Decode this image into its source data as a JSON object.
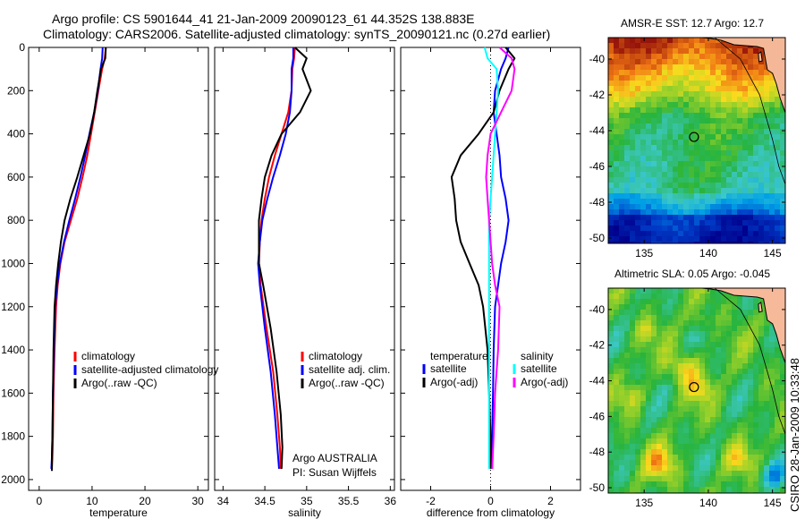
{
  "header": {
    "line1": "Argo profile: CS 5901644_41 21-Jan-2009 20090123_61 44.352S 138.883E",
    "line2": "Climatology: CARS2006. Satellite-adjusted climatology: synTS_20090121.nc (0.27d earlier)"
  },
  "side_label": "CSIRO 28-Jan-2009 10:33:48",
  "credit": {
    "line1": "Argo AUSTRALIA",
    "line2": "PI: Susan Wijffels"
  },
  "colors": {
    "climatology": "#ff0000",
    "satellite": "#0000ff",
    "argo": "#000000",
    "salinity_diff": "#ff00ff",
    "salinity_sat": "#00ffff"
  },
  "chart_data": [
    {
      "type": "line",
      "xlabel": "temperature",
      "ylabel": "",
      "xlim": [
        -2,
        32
      ],
      "ylim": [
        2050,
        0
      ],
      "xticks": [
        0,
        10,
        20,
        30
      ],
      "yticks": [
        0,
        200,
        400,
        600,
        800,
        1000,
        1200,
        1400,
        1600,
        1800,
        2000
      ],
      "legend": [
        "climatology",
        "satellite-adjusted climatology",
        "Argo(..raw -QC)"
      ],
      "series": [
        {
          "name": "climatology",
          "color": "#ff0000",
          "x": [
            12.6,
            12.4,
            11.9,
            11.2,
            10.5,
            9.8,
            9.1,
            8.2,
            7.2,
            6.0,
            4.8,
            4.0,
            3.5,
            3.2,
            2.9,
            2.7,
            2.6,
            2.5,
            2.4
          ],
          "y": [
            0,
            50,
            100,
            200,
            300,
            400,
            500,
            600,
            700,
            800,
            900,
            1000,
            1100,
            1200,
            1400,
            1600,
            1800,
            1900,
            1950
          ]
        },
        {
          "name": "satellite-adjusted climatology",
          "color": "#0000ff",
          "x": [
            12.0,
            11.9,
            11.6,
            11.1,
            10.4,
            9.5,
            8.7,
            7.8,
            6.8,
            5.7,
            4.7,
            3.9,
            3.4,
            3.0,
            2.8,
            2.6,
            2.5,
            2.4,
            2.3
          ],
          "y": [
            0,
            50,
            100,
            200,
            300,
            400,
            500,
            600,
            700,
            800,
            900,
            1000,
            1100,
            1200,
            1400,
            1600,
            1800,
            1900,
            1950
          ]
        },
        {
          "name": "Argo(..raw -QC)",
          "color": "#000000",
          "x": [
            12.6,
            12.5,
            11.7,
            11.0,
            10.4,
            9.6,
            8.4,
            7.2,
            5.9,
            4.8,
            4.1,
            3.6,
            3.2,
            2.9,
            2.7,
            2.6,
            2.5,
            2.4,
            2.4
          ],
          "y": [
            0,
            50,
            100,
            200,
            300,
            400,
            500,
            600,
            700,
            800,
            900,
            1000,
            1100,
            1200,
            1400,
            1600,
            1800,
            1900,
            1960
          ]
        }
      ]
    },
    {
      "type": "line",
      "xlabel": "salinity",
      "ylabel": "",
      "xlim": [
        33.9,
        36.05
      ],
      "ylim": [
        2050,
        0
      ],
      "xticks": [
        34,
        34.5,
        35,
        35.5,
        36
      ],
      "xticklabels": [
        "34",
        "34.5",
        "35",
        "35.5",
        "36"
      ],
      "legend": [
        "climatology",
        "satellite adj. clim.",
        "Argo(..raw -QC)"
      ],
      "series": [
        {
          "name": "climatology",
          "color": "#ff0000",
          "x": [
            34.86,
            34.85,
            34.83,
            34.82,
            34.78,
            34.7,
            34.62,
            34.55,
            34.5,
            34.46,
            34.44,
            34.43,
            34.45,
            34.52,
            34.6,
            34.65,
            34.68,
            34.69
          ],
          "y": [
            0,
            50,
            100,
            200,
            300,
            400,
            500,
            600,
            700,
            800,
            900,
            1000,
            1100,
            1300,
            1500,
            1700,
            1850,
            1950
          ]
        },
        {
          "name": "satellite adj. clim.",
          "color": "#0000ff",
          "x": [
            34.84,
            34.84,
            34.82,
            34.82,
            34.8,
            34.75,
            34.68,
            34.6,
            34.53,
            34.47,
            34.44,
            34.42,
            34.44,
            34.5,
            34.57,
            34.62,
            34.65,
            34.67
          ],
          "y": [
            0,
            50,
            100,
            200,
            300,
            400,
            500,
            600,
            700,
            800,
            900,
            1000,
            1100,
            1300,
            1500,
            1700,
            1850,
            1950
          ]
        },
        {
          "name": "Argo(..raw -QC)",
          "color": "#000000",
          "x": [
            34.86,
            35.0,
            34.95,
            35.05,
            34.92,
            34.7,
            34.58,
            34.5,
            34.46,
            34.43,
            34.43,
            34.43,
            34.48,
            34.57,
            34.64,
            34.69,
            34.71,
            34.7
          ],
          "y": [
            0,
            50,
            100,
            200,
            300,
            400,
            500,
            600,
            700,
            800,
            900,
            1000,
            1100,
            1300,
            1500,
            1700,
            1850,
            1950
          ]
        }
      ]
    },
    {
      "type": "line",
      "xlabel": "difference from climatology",
      "ylabel": "",
      "xlim": [
        -3,
        3
      ],
      "ylim": [
        2050,
        0
      ],
      "xticks": [
        -2,
        0,
        2
      ],
      "legend_groups": [
        {
          "heading": "temperature",
          "items": [
            "satellite",
            "Argo(-adj)"
          ]
        },
        {
          "heading": "salinity",
          "items": [
            "satellite",
            "Argo(-adj)"
          ]
        }
      ],
      "series": [
        {
          "name": "temperature satellite",
          "color": "#0000ff",
          "x": [
            0.6,
            0.5,
            0.35,
            0.15,
            0.1,
            0.2,
            0.3,
            0.35,
            0.5,
            0.6,
            0.5,
            0.35,
            0.25,
            0.15,
            0.1,
            0.08,
            0.05,
            0.05
          ],
          "y": [
            0,
            50,
            100,
            200,
            300,
            400,
            500,
            600,
            700,
            800,
            900,
            1000,
            1100,
            1200,
            1400,
            1600,
            1800,
            1950
          ]
        },
        {
          "name": "temperature Argo(-adj)",
          "color": "#000000",
          "x": [
            0.5,
            0.8,
            0.6,
            0.3,
            0.1,
            -0.4,
            -1.0,
            -1.3,
            -1.2,
            -1.15,
            -1.0,
            -0.7,
            -0.4,
            -0.25,
            -0.1,
            -0.05,
            0.0,
            0.0
          ],
          "y": [
            0,
            50,
            100,
            200,
            300,
            400,
            500,
            600,
            700,
            800,
            900,
            1000,
            1100,
            1200,
            1400,
            1600,
            1800,
            1950
          ]
        },
        {
          "name": "salinity satellite",
          "color": "#00ffff",
          "x": [
            -0.2,
            -0.1,
            0.2,
            0.25,
            0.2,
            0.15,
            0.1,
            0.05,
            0.0,
            -0.05,
            -0.05,
            -0.05,
            -0.05,
            -0.05,
            -0.05,
            -0.05,
            -0.05,
            -0.05
          ],
          "y": [
            0,
            50,
            100,
            200,
            300,
            400,
            500,
            600,
            700,
            800,
            900,
            1000,
            1100,
            1200,
            1400,
            1600,
            1800,
            1950
          ]
        },
        {
          "name": "salinity Argo(-adj)",
          "color": "#ff00ff",
          "x": [
            0.3,
            0.7,
            0.8,
            0.7,
            0.35,
            0.0,
            -0.1,
            -0.15,
            -0.1,
            -0.05,
            0.0,
            0.05,
            0.15,
            0.3,
            0.25,
            0.15,
            0.1,
            0.05
          ],
          "y": [
            0,
            50,
            100,
            200,
            300,
            400,
            500,
            600,
            700,
            800,
            900,
            1000,
            1100,
            1200,
            1400,
            1600,
            1800,
            1950
          ]
        }
      ]
    },
    {
      "type": "heatmap",
      "title": "AMSR-E SST: 12.7 Argo: 12.7",
      "xlim": [
        132.2,
        146
      ],
      "ylim": [
        -50.3,
        -38.8
      ],
      "xticks": [
        135,
        140,
        145
      ],
      "yticks": [
        -40,
        -42,
        -44,
        -46,
        -48,
        -50
      ],
      "marker": {
        "lon": 138.883,
        "lat": -44.352
      }
    },
    {
      "type": "heatmap",
      "title": "Altimetric SLA: 0.05 Argo: -0.045",
      "xlim": [
        132.2,
        146
      ],
      "ylim": [
        -50.3,
        -38.8
      ],
      "xticks": [
        135,
        140,
        145
      ],
      "yticks": [
        -40,
        -42,
        -44,
        -46,
        -48,
        -50
      ],
      "marker": {
        "lon": 138.883,
        "lat": -44.352
      }
    }
  ]
}
